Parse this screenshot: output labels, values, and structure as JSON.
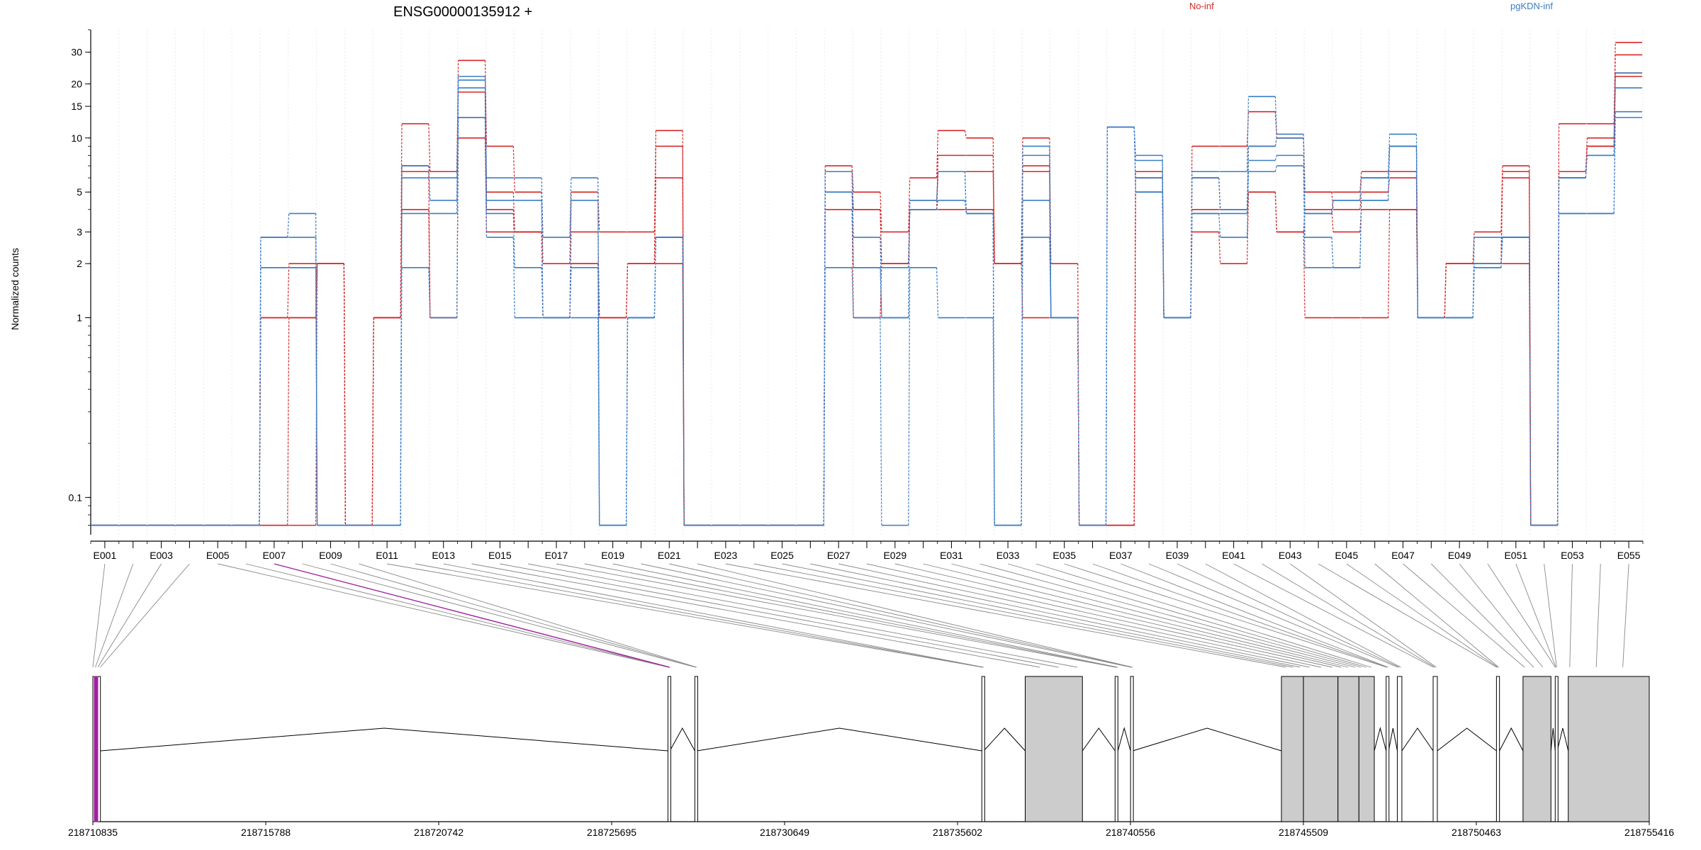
{
  "chart_data": {
    "type": "line",
    "title": "ENSG00000135912 +",
    "ylabel": "Normalized counts",
    "y_scale": "log",
    "y_ticks": [
      0.1,
      1,
      2,
      3,
      5,
      10,
      15,
      20,
      30
    ],
    "y_tick_labels": [
      "0.1",
      "1",
      "2",
      "3",
      "5",
      "10",
      "15",
      "20",
      "30"
    ],
    "zero_floor": 0.07,
    "ylim": [
      0.062,
      40
    ],
    "legend": [
      "No-inf",
      "pgKDN-inf"
    ],
    "legend_placement": "top",
    "grid": false,
    "colors": {
      "No-inf": "#d62728",
      "pgKDN-inf": "#3a7dc4",
      "highlight": "#a020a0",
      "exon_fill": "#cccccc"
    },
    "exons": [
      "E001",
      "E002",
      "E003",
      "E004",
      "E005",
      "E006",
      "E007",
      "E008",
      "E009",
      "E010",
      "E011",
      "E012",
      "E013",
      "E014",
      "E015",
      "E016",
      "E017",
      "E018",
      "E019",
      "E020",
      "E021",
      "E022",
      "E023",
      "E024",
      "E025",
      "E026",
      "E027",
      "E028",
      "E029",
      "E030",
      "E031",
      "E032",
      "E033",
      "E034",
      "E035",
      "E036",
      "E037",
      "E038",
      "E039",
      "E040",
      "E041",
      "E042",
      "E043",
      "E044",
      "E045",
      "E046",
      "E047",
      "E048",
      "E049",
      "E050",
      "E051",
      "E052",
      "E053",
      "E054",
      "E055"
    ],
    "exon_tick_labels": [
      "E001",
      "E003",
      "E005",
      "E007",
      "E009",
      "E011",
      "E013",
      "E015",
      "E017",
      "E019",
      "E021",
      "E023",
      "E025",
      "E027",
      "E029",
      "E031",
      "E033",
      "E035",
      "E037",
      "E039",
      "E041",
      "E043",
      "E045",
      "E047",
      "E049",
      "E051",
      "E053",
      "E055"
    ],
    "series": [
      {
        "name": "No-inf",
        "values": [
          0,
          0,
          0,
          0,
          0,
          0,
          1,
          1,
          2,
          0,
          1,
          12,
          6.5,
          27,
          9,
          5,
          2,
          5,
          3,
          3,
          11,
          0,
          0,
          0,
          0,
          0,
          7,
          5,
          3,
          6,
          11,
          10,
          2,
          10,
          2,
          0,
          0,
          6.5,
          1,
          9,
          9,
          14,
          10,
          5,
          5,
          6.5,
          6.5,
          1,
          2,
          3,
          7,
          0,
          12,
          12,
          34
        ]
      },
      {
        "name": "No-inf",
        "values": [
          0,
          0,
          0,
          0,
          0,
          0,
          1,
          2,
          2,
          0,
          1,
          7,
          6.5,
          18,
          5,
          3,
          1,
          3,
          1,
          2,
          9,
          0,
          0,
          0,
          0,
          0,
          6.5,
          4,
          2,
          4,
          8,
          8,
          2,
          7,
          1,
          0,
          0,
          6,
          1,
          6,
          4,
          9,
          10,
          5,
          4,
          5,
          6,
          1,
          2,
          2,
          6.5,
          0,
          6.5,
          10,
          29
        ]
      },
      {
        "name": "No-inf",
        "values": [
          0,
          0,
          0,
          0,
          0,
          0,
          0,
          1,
          2,
          0,
          1,
          6.5,
          1,
          13,
          4,
          3,
          1,
          2,
          1,
          2,
          6,
          0,
          0,
          0,
          0,
          0,
          5,
          4,
          2,
          4,
          6.5,
          6.5,
          2,
          6.5,
          1,
          0,
          0,
          5,
          1,
          4,
          4,
          5,
          3,
          4,
          3,
          4,
          4,
          1,
          2,
          2,
          6,
          0,
          6.5,
          9,
          23
        ]
      },
      {
        "name": "No-inf",
        "values": [
          0,
          0,
          0,
          0,
          0,
          0,
          0,
          0,
          2,
          0,
          1,
          4,
          1,
          10,
          3,
          3,
          1,
          2,
          1,
          2,
          2,
          0,
          0,
          0,
          0,
          0,
          4,
          1,
          2,
          4,
          4,
          4,
          2,
          1,
          1,
          0,
          0,
          5,
          1,
          3,
          2,
          5,
          3,
          1,
          1,
          1,
          4,
          1,
          2,
          2,
          2,
          0,
          6,
          9,
          22
        ]
      },
      {
        "name": "pgKDN-inf",
        "values": [
          0,
          0,
          0,
          0,
          0,
          0,
          2.8,
          3.8,
          0,
          0,
          0,
          6,
          6,
          22,
          6,
          6,
          2.8,
          6,
          0,
          1,
          2.8,
          0,
          0,
          0,
          0,
          0,
          6.5,
          2.8,
          1,
          4.5,
          6.5,
          3.8,
          0,
          9,
          1,
          0,
          11.5,
          8,
          1,
          6.5,
          6.5,
          17,
          10.5,
          3.8,
          4.5,
          6,
          10.5,
          1,
          1,
          2.8,
          2.8,
          0,
          6,
          8,
          23
        ]
      },
      {
        "name": "pgKDN-inf",
        "values": [
          0,
          0,
          0,
          0,
          0,
          0,
          2.8,
          2.8,
          0,
          0,
          0,
          7,
          4.5,
          21,
          4.5,
          4.5,
          1,
          4.5,
          0,
          1,
          2.8,
          0,
          0,
          0,
          0,
          0,
          6.5,
          1.9,
          1,
          4.5,
          6.5,
          3.8,
          0,
          8,
          1,
          0,
          11.5,
          7.5,
          1,
          6,
          4,
          9,
          10,
          3.8,
          4.5,
          6,
          9,
          1,
          1,
          2,
          2.8,
          0,
          6,
          8,
          19
        ]
      },
      {
        "name": "pgKDN-inf",
        "values": [
          0,
          0,
          0,
          0,
          0,
          0,
          1.9,
          1.9,
          0,
          0,
          0,
          3.8,
          3.8,
          19,
          3.8,
          1.9,
          1,
          1.9,
          0,
          1,
          2.8,
          0,
          0,
          0,
          0,
          0,
          5,
          1.9,
          1.9,
          4,
          4.5,
          3.8,
          0,
          4.5,
          1,
          0,
          11.5,
          6,
          1,
          3.8,
          3.8,
          7.5,
          8,
          2.8,
          1.9,
          4.5,
          9,
          1,
          1,
          1.9,
          2.8,
          0,
          3.8,
          3.8,
          14
        ]
      },
      {
        "name": "pgKDN-inf",
        "values": [
          0,
          0,
          0,
          0,
          0,
          0,
          1.9,
          1.9,
          0,
          0,
          0,
          1.9,
          1,
          13,
          2.8,
          1,
          1,
          1,
          0,
          1,
          2.8,
          0,
          0,
          0,
          0,
          0,
          1.9,
          1,
          0,
          1.9,
          1,
          1,
          0,
          2.8,
          1,
          0,
          11.5,
          5,
          1,
          3.8,
          2.8,
          6.5,
          7,
          1.9,
          1.9,
          4.5,
          9,
          1,
          1,
          1.9,
          2.8,
          0,
          3.8,
          3.8,
          13
        ]
      }
    ],
    "genome_ticks": [
      "218710835",
      "218715788",
      "218720742",
      "218725695",
      "218730649",
      "218735602",
      "218740556",
      "218745509",
      "218750463",
      "218755416"
    ],
    "genome_range": [
      218710835,
      218755416
    ],
    "genes": [
      {
        "start": 218710835,
        "end": 218711052
      },
      {
        "start": 218727308,
        "end": 218727363
      },
      {
        "start": 218728078,
        "end": 218728138
      },
      {
        "start": 218736299,
        "end": 218736354
      },
      {
        "start": 218737541,
        "end": 218739180
      },
      {
        "start": 218740115,
        "end": 218740196
      },
      {
        "start": 218740558,
        "end": 218740620
      },
      {
        "start": 218744880,
        "end": 218745510
      },
      {
        "start": 218745510,
        "end": 218746500
      },
      {
        "start": 218746500,
        "end": 218747100
      },
      {
        "start": 218747100,
        "end": 218747540
      },
      {
        "start": 218747880,
        "end": 218747950
      },
      {
        "start": 218748200,
        "end": 218748330
      },
      {
        "start": 218749225,
        "end": 218749346
      },
      {
        "start": 218751039,
        "end": 218751126
      },
      {
        "start": 218751800,
        "end": 218752600
      },
      {
        "start": 218752722,
        "end": 218752780
      },
      {
        "start": 218753096,
        "end": 218755416
      }
    ]
  },
  "labels": {
    "title": "ENSG00000135912 +",
    "ylabel": "Normalized counts",
    "legend_noinf": "No-inf",
    "legend_pgkdn": "pgKDN-inf"
  }
}
